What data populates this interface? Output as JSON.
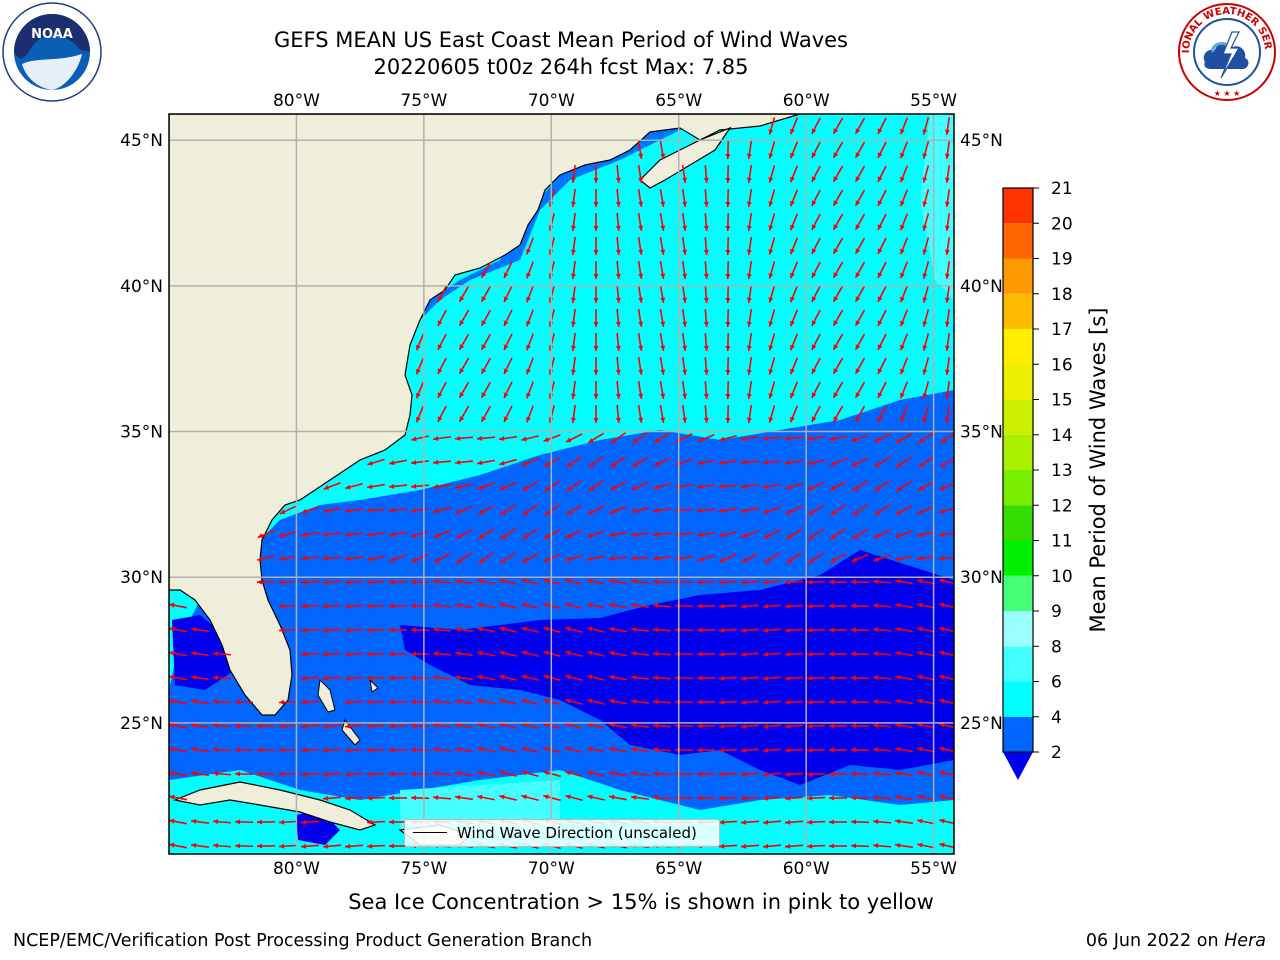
{
  "title_line1": "GEFS MEAN US East Coast Mean Period of Wind Waves",
  "title_line2": "20220605 t00z 264h fcst   Max: 7.85",
  "map": {
    "lon_ticks": [
      "80°W",
      "75°W",
      "70°W",
      "65°W",
      "60°W",
      "55°W"
    ],
    "lat_ticks": [
      "45°N",
      "40°N",
      "35°N",
      "30°N",
      "25°N"
    ],
    "lon_values": [
      -80,
      -75,
      -70,
      -65,
      -60,
      -55
    ],
    "lat_values": [
      45,
      40,
      35,
      30,
      25
    ],
    "extent": {
      "lon_min": -85,
      "lon_max": -54.2,
      "lat_min": 20.5,
      "lat_max": 45.9
    },
    "land_color": "#efeedb",
    "arrow_color": "#ff0000",
    "grid_color": "#b0b0b0"
  },
  "colorbar": {
    "label": "Mean Period of Wind Waves [s]",
    "ticks": [
      "2",
      "4",
      "6",
      "8",
      "9",
      "10",
      "11",
      "12",
      "13",
      "14",
      "15",
      "16",
      "17",
      "18",
      "19",
      "20",
      "21"
    ],
    "levels": [
      2,
      4,
      6,
      8,
      9,
      10,
      11,
      12,
      13,
      14,
      15,
      16,
      17,
      18,
      19,
      20,
      21
    ],
    "colors": [
      "#0066ff",
      "#00ffff",
      "#44ffff",
      "#99ffff",
      "#44ff77",
      "#00ee00",
      "#33dd00",
      "#77ee00",
      "#aaee00",
      "#ccee00",
      "#eeee00",
      "#ffee00",
      "#ffbb00",
      "#ff9900",
      "#ff6600",
      "#ff3300",
      "#ff0000"
    ],
    "under_color": "#0000ee"
  },
  "legend": {
    "label": "Wind Wave Direction (unscaled)"
  },
  "footnote": "Sea Ice Concentration > 15% is shown in pink to yellow",
  "credit_left": "NCEP/EMC/Verification Post Processing Product Generation Branch",
  "credit_date": "06 Jun 2022 on",
  "credit_host": "Hera",
  "logos": {
    "noaa": "NOAA",
    "nws": "NATIONAL WEATHER SERVICE"
  }
}
